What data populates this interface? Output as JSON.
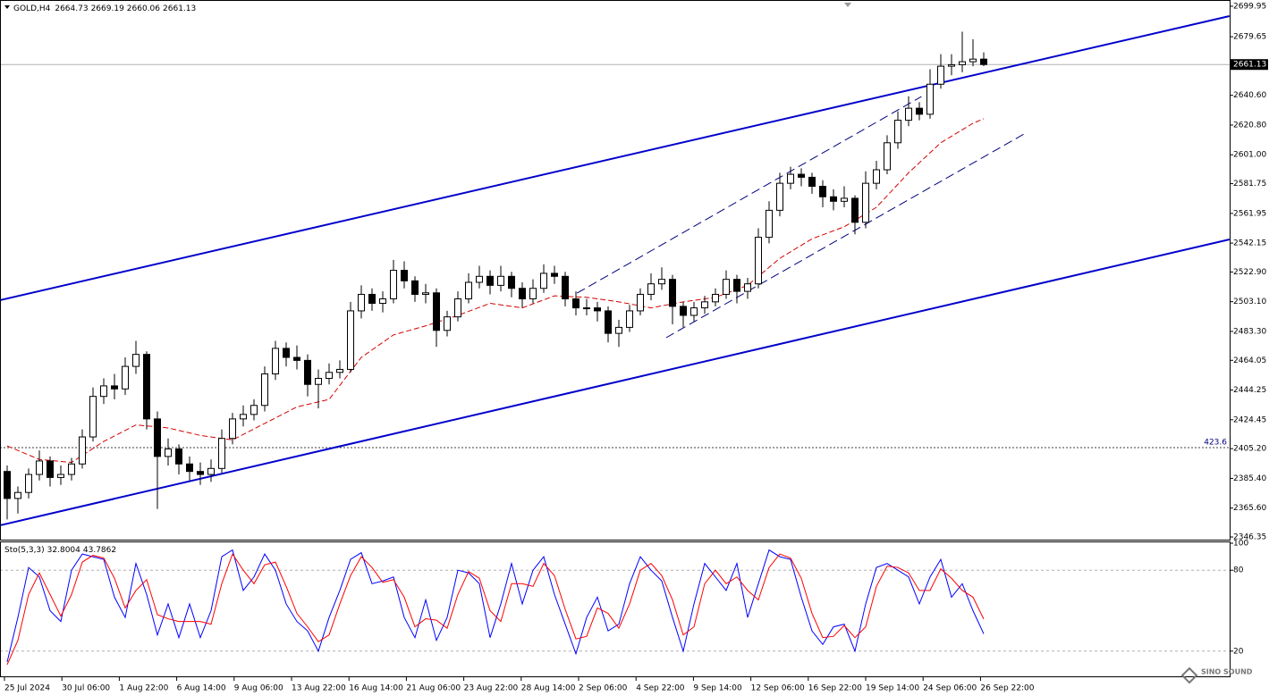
{
  "chart_data": [
    {
      "type": "candlestick",
      "symbol": "GOLD,H4",
      "up_color": "#ffffff",
      "down_color": "#000000",
      "wick_color": "#000000",
      "ylim": [
        2346.35,
        2699.95
      ],
      "yticks": [
        2699.95,
        2679.65,
        {
          "value": 2640.6,
          "label": "2640.60"
        },
        {
          "value": 2620.8,
          "label": "2620.80"
        },
        {
          "value": 2601,
          "label": "2601.00"
        },
        2581.75,
        2561.95,
        2542.15,
        {
          "value": 2522.9,
          "label": "2522.90"
        },
        {
          "value": 2503.1,
          "label": "2503.10"
        },
        {
          "value": 2483.3,
          "label": "2483.30"
        },
        2464.05,
        2444.25,
        2424.45,
        {
          "value": 2405.2,
          "label": "2405.20"
        },
        {
          "value": 2385.4,
          "label": "2385.40"
        },
        {
          "value": 2365.6,
          "label": "2365.60"
        },
        2346.35
      ],
      "x_labels": [
        "25 Jul 2024",
        "30 Jul 06:00",
        "1 Aug 22:00",
        "6 Aug 14:00",
        "9 Aug 06:00",
        "13 Aug 22:00",
        "16 Aug 14:00",
        "21 Aug 06:00",
        "23 Aug 22:00",
        "28 Aug 14:00",
        "2 Sep 06:00",
        "4 Sep 22:00",
        "9 Sep 14:00",
        "12 Sep 06:00",
        "16 Sep 22:00",
        "19 Sep 14:00",
        "24 Sep 06:00",
        "26 Sep 22:00"
      ],
      "candles": [
        [
          2390,
          2394,
          2358,
          2372
        ],
        [
          2372,
          2380,
          2362,
          2376
        ],
        [
          2376,
          2392,
          2372,
          2388
        ],
        [
          2388,
          2404,
          2384,
          2397
        ],
        [
          2397,
          2400,
          2380,
          2386
        ],
        [
          2386,
          2394,
          2381,
          2388
        ],
        [
          2388,
          2399,
          2384,
          2395
        ],
        [
          2395,
          2418,
          2392,
          2413
        ],
        [
          2413,
          2446,
          2410,
          2440
        ],
        [
          2440,
          2452,
          2435,
          2447
        ],
        [
          2447,
          2455,
          2438,
          2445
        ],
        [
          2445,
          2466,
          2441,
          2460
        ],
        [
          2460,
          2477,
          2455,
          2468
        ],
        [
          2468,
          2470,
          2418,
          2425
        ],
        [
          2425,
          2430,
          2365,
          2400
        ],
        [
          2400,
          2412,
          2394,
          2405
        ],
        [
          2405,
          2408,
          2388,
          2395
        ],
        [
          2395,
          2400,
          2384,
          2390
        ],
        [
          2390,
          2396,
          2381,
          2388
        ],
        [
          2388,
          2398,
          2383,
          2392
        ],
        [
          2392,
          2418,
          2389,
          2412
        ],
        [
          2412,
          2429,
          2408,
          2425
        ],
        [
          2425,
          2434,
          2420,
          2428
        ],
        [
          2428,
          2438,
          2424,
          2434
        ],
        [
          2434,
          2460,
          2430,
          2455
        ],
        [
          2455,
          2477,
          2451,
          2472
        ],
        [
          2472,
          2476,
          2460,
          2466
        ],
        [
          2466,
          2474,
          2458,
          2464
        ],
        [
          2464,
          2468,
          2440,
          2448
        ],
        [
          2448,
          2458,
          2432,
          2452
        ],
        [
          2452,
          2462,
          2448,
          2456
        ],
        [
          2456,
          2464,
          2452,
          2458
        ],
        [
          2458,
          2503,
          2456,
          2497
        ],
        [
          2497,
          2514,
          2492,
          2508
        ],
        [
          2508,
          2512,
          2497,
          2502
        ],
        [
          2502,
          2510,
          2496,
          2505
        ],
        [
          2505,
          2531,
          2502,
          2524
        ],
        [
          2524,
          2530,
          2512,
          2517
        ],
        [
          2517,
          2520,
          2503,
          2508
        ],
        [
          2508,
          2515,
          2502,
          2509
        ],
        [
          2509,
          2512,
          2473,
          2484
        ],
        [
          2484,
          2497,
          2480,
          2493
        ],
        [
          2493,
          2510,
          2490,
          2505
        ],
        [
          2505,
          2522,
          2502,
          2516
        ],
        [
          2516,
          2527,
          2512,
          2520
        ],
        [
          2520,
          2524,
          2508,
          2514
        ],
        [
          2514,
          2527,
          2510,
          2520
        ],
        [
          2520,
          2523,
          2506,
          2512
        ],
        [
          2512,
          2516,
          2499,
          2505
        ],
        [
          2505,
          2518,
          2502,
          2512
        ],
        [
          2512,
          2528,
          2509,
          2522
        ],
        [
          2522,
          2527,
          2515,
          2520
        ],
        [
          2520,
          2523,
          2500,
          2505
        ],
        [
          2505,
          2510,
          2494,
          2499
        ],
        [
          2499,
          2505,
          2494,
          2499
        ],
        [
          2499,
          2503,
          2490,
          2497
        ],
        [
          2497,
          2500,
          2476,
          2482
        ],
        [
          2482,
          2491,
          2473,
          2486
        ],
        [
          2486,
          2501,
          2483,
          2497
        ],
        [
          2497,
          2512,
          2494,
          2508
        ],
        [
          2508,
          2522,
          2504,
          2515
        ],
        [
          2515,
          2526,
          2511,
          2518
        ],
        [
          2518,
          2521,
          2488,
          2500
        ],
        [
          2500,
          2503,
          2486,
          2494
        ],
        [
          2494,
          2503,
          2490,
          2499
        ],
        [
          2499,
          2507,
          2495,
          2503
        ],
        [
          2503,
          2512,
          2500,
          2508
        ],
        [
          2508,
          2524,
          2505,
          2518
        ],
        [
          2518,
          2521,
          2502,
          2510
        ],
        [
          2510,
          2519,
          2505,
          2515
        ],
        [
          2515,
          2552,
          2512,
          2546
        ],
        [
          2546,
          2570,
          2542,
          2564
        ],
        [
          2564,
          2589,
          2560,
          2582
        ],
        [
          2582,
          2593,
          2578,
          2588
        ],
        [
          2588,
          2592,
          2580,
          2586
        ],
        [
          2586,
          2589,
          2575,
          2580
        ],
        [
          2580,
          2584,
          2566,
          2573
        ],
        [
          2573,
          2578,
          2564,
          2570
        ],
        [
          2570,
          2580,
          2566,
          2572
        ],
        [
          2572,
          2574,
          2548,
          2556
        ],
        [
          2556,
          2590,
          2552,
          2582
        ],
        [
          2582,
          2597,
          2578,
          2591
        ],
        [
          2591,
          2614,
          2588,
          2609
        ],
        [
          2609,
          2630,
          2605,
          2624
        ],
        [
          2624,
          2640,
          2620,
          2632
        ],
        [
          2632,
          2636,
          2624,
          2628
        ],
        [
          2628,
          2658,
          2625,
          2648
        ],
        [
          2648,
          2668,
          2645,
          2660
        ],
        [
          2660,
          2668,
          2654,
          2661
        ],
        [
          2661,
          2683,
          2656,
          2663
        ],
        [
          2663,
          2678,
          2660,
          2664.73
        ],
        [
          2664.73,
          2669.19,
          2660.06,
          2661.13
        ]
      ],
      "ma": {
        "color": "#d40000",
        "x": [
          0,
          3,
          6,
          9,
          12,
          15,
          18,
          21,
          24,
          27,
          30,
          33,
          36,
          39,
          42,
          45,
          48,
          51,
          54,
          57,
          60,
          63,
          66,
          69,
          72,
          75,
          78,
          81,
          84,
          87,
          90,
          91
        ],
        "values": [
          2407,
          2398,
          2396,
          2410,
          2421,
          2419,
          2414,
          2411,
          2422,
          2433,
          2438,
          2466,
          2481,
          2487,
          2494,
          2502,
          2499,
          2507,
          2506,
          2503,
          2499,
          2503,
          2506,
          2514,
          2532,
          2545,
          2553,
          2566,
          2589,
          2609,
          2622,
          2625
        ]
      },
      "trendlines": [
        {
          "color": "#0000cc",
          "style": "solid",
          "x": [
            -0.67,
            113.9
          ],
          "y": [
            2504.1,
            2693.4
          ]
        },
        {
          "color": "#0000cc",
          "style": "solid",
          "x": [
            -0.67,
            113.9
          ],
          "y": [
            2354.1,
            2544.6
          ]
        },
        {
          "color": "#000080",
          "style": "dashed",
          "x": [
            53.1,
            85.2
          ],
          "y": [
            2508.8,
            2639.8
          ]
        },
        {
          "color": "#000080",
          "style": "dashed",
          "x": [
            61.4,
            94.75
          ],
          "y": [
            2479.1,
            2614.8
          ]
        }
      ],
      "levels": [
        {
          "label": "423.6",
          "value": 2405.9
        }
      ]
    },
    {
      "type": "line",
      "name": "Sto(5,3,3)",
      "ylim": [
        0,
        100
      ],
      "yticks": [
        20,
        80,
        100
      ],
      "grid": "dashed",
      "series": [
        {
          "color": "#0000ff",
          "values": [
            12,
            45,
            82,
            75,
            50,
            42,
            80,
            92,
            90,
            88,
            60,
            45,
            85,
            62,
            32,
            55,
            30,
            55,
            30,
            50,
            90,
            95,
            65,
            75,
            92,
            80,
            55,
            42,
            35,
            20,
            45,
            65,
            88,
            93,
            70,
            72,
            75,
            45,
            30,
            58,
            28,
            45,
            80,
            78,
            70,
            30,
            55,
            85,
            55,
            80,
            90,
            62,
            40,
            18,
            45,
            60,
            35,
            40,
            70,
            90,
            80,
            72,
            45,
            20,
            55,
            85,
            75,
            65,
            85,
            45,
            70,
            95,
            90,
            88,
            60,
            35,
            25,
            38,
            40,
            20,
            55,
            82,
            85,
            80,
            75,
            55,
            75,
            88,
            60,
            70,
            50,
            32.8004
          ]
        },
        {
          "color": "#ff0000",
          "values": [
            10,
            28,
            62,
            78,
            62,
            46,
            62,
            86,
            91,
            89,
            74,
            52,
            65,
            73,
            47,
            44,
            42,
            42,
            42,
            40,
            70,
            92,
            80,
            70,
            84,
            86,
            68,
            48,
            38,
            27,
            32,
            55,
            76,
            90,
            82,
            71,
            73,
            60,
            38,
            44,
            43,
            37,
            62,
            79,
            74,
            50,
            42,
            70,
            70,
            68,
            85,
            76,
            51,
            29,
            31,
            52,
            48,
            37,
            55,
            80,
            85,
            76,
            58,
            32,
            38,
            70,
            80,
            70,
            75,
            65,
            58,
            82,
            92,
            89,
            74,
            48,
            30,
            31,
            39,
            30,
            38,
            68,
            83,
            82,
            78,
            65,
            65,
            81,
            74,
            65,
            60,
            43.7862
          ]
        }
      ]
    }
  ],
  "watermark": "SINO SOUND"
}
